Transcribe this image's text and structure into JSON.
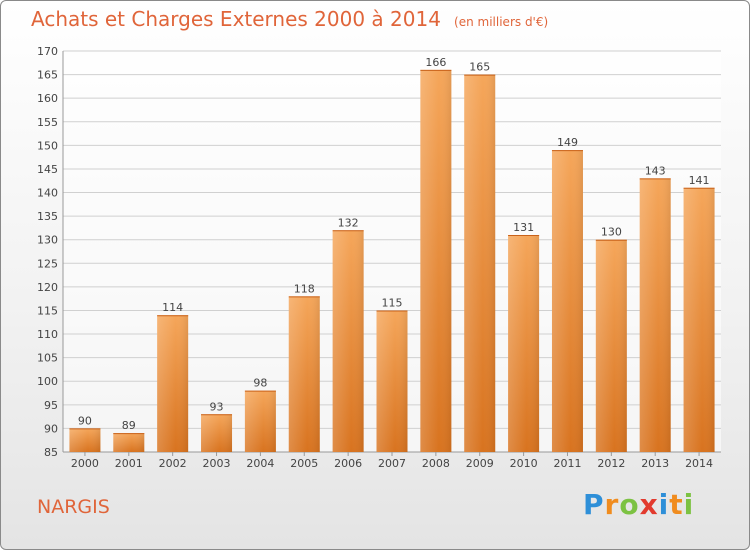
{
  "title": "Achats et Charges Externes 2000 à 2014",
  "unit": "(en milliers d'€)",
  "commune": "NARGIS",
  "logo": {
    "text": "Proxiti",
    "letters": [
      {
        "ch": "P",
        "color": "#2e8fd8"
      },
      {
        "ch": "r",
        "color": "#f08c1e"
      },
      {
        "ch": "o",
        "color": "#7cc242"
      },
      {
        "ch": "x",
        "color": "#e23a2e"
      },
      {
        "ch": "i",
        "color": "#2e8fd8"
      },
      {
        "ch": "t",
        "color": "#f08c1e"
      },
      {
        "ch": "i",
        "color": "#7cc242"
      }
    ]
  },
  "colors": {
    "accent": "#e0653a",
    "bar_top": "#f5a65a",
    "bar_bottom": "#d8731f",
    "grid": "#d0d0d0"
  },
  "chart_data": {
    "type": "bar",
    "categories": [
      "2000",
      "2001",
      "2002",
      "2003",
      "2004",
      "2005",
      "2006",
      "2007",
      "2008",
      "2009",
      "2010",
      "2011",
      "2012",
      "2013",
      "2014"
    ],
    "values": [
      90,
      89,
      114,
      93,
      98,
      118,
      132,
      115,
      166,
      165,
      131,
      149,
      130,
      143,
      141
    ],
    "ylim": [
      85,
      170
    ],
    "yticks": [
      85,
      90,
      95,
      100,
      105,
      110,
      115,
      120,
      125,
      130,
      135,
      140,
      145,
      150,
      155,
      160,
      165,
      170
    ],
    "grid": true,
    "xlabel": "",
    "ylabel": ""
  }
}
